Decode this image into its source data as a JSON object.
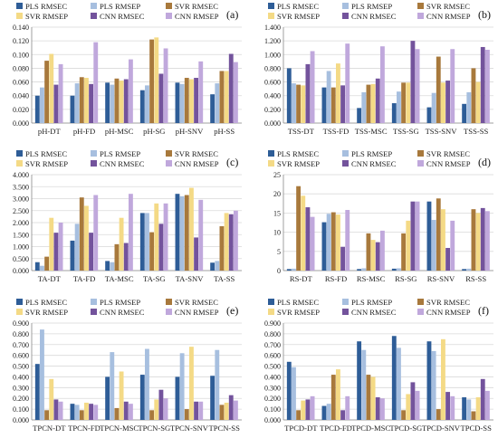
{
  "colors": {
    "PLS RMSEC": "#2e5d97",
    "PLS RMSEP": "#a7bfdf",
    "SVR RMSEC": "#a8793c",
    "SVR RMSEP": "#f4da86",
    "CNN RMSEC": "#73539c",
    "CNN RMSEP": "#c0a8dc"
  },
  "chart_data": [
    {
      "type": "bar",
      "panel_label": "(a)",
      "legend_position": "top",
      "categories": [
        "pH-DT",
        "pH-FD",
        "pH-MSC",
        "pH-SG",
        "pH-SNV",
        "pH-SS"
      ],
      "ylim": [
        0,
        0.14
      ],
      "yticks": [
        "0.000",
        "0.020",
        "0.040",
        "0.060",
        "0.080",
        "0.100",
        "0.120",
        "0.140"
      ],
      "series": [
        {
          "name": "PLS RMSEC",
          "values": [
            0.04,
            0.04,
            0.059,
            0.048,
            0.059,
            0.042
          ]
        },
        {
          "name": "PLS RMSEP",
          "values": [
            0.052,
            0.058,
            0.056,
            0.055,
            0.057,
            0.058
          ]
        },
        {
          "name": "SVR RMSEC",
          "values": [
            0.091,
            0.067,
            0.065,
            0.122,
            0.066,
            0.076
          ]
        },
        {
          "name": "SVR RMSEP",
          "values": [
            0.101,
            0.066,
            0.062,
            0.125,
            0.064,
            0.076
          ]
        },
        {
          "name": "CNN RMSEC",
          "values": [
            0.056,
            0.057,
            0.064,
            0.072,
            0.066,
            0.101
          ]
        },
        {
          "name": "CNN RMSEP",
          "values": [
            0.086,
            0.118,
            0.093,
            0.109,
            0.09,
            0.089
          ]
        }
      ]
    },
    {
      "type": "bar",
      "panel_label": "(b)",
      "legend_position": "top",
      "categories": [
        "TSS-DT",
        "TSS-FD",
        "TSS-MSC",
        "TSS-SG",
        "TSS-SNV",
        "TSS-SS"
      ],
      "ylim": [
        0,
        1.4
      ],
      "yticks": [
        "0.000",
        "0.200",
        "0.400",
        "0.600",
        "0.800",
        "1.000",
        "1.200",
        "1.400"
      ],
      "series": [
        {
          "name": "PLS RMSEC",
          "values": [
            0.8,
            0.52,
            0.22,
            0.29,
            0.23,
            0.28
          ]
        },
        {
          "name": "PLS RMSEP",
          "values": [
            0.58,
            0.76,
            0.45,
            0.46,
            0.44,
            0.45
          ]
        },
        {
          "name": "SVR RMSEC",
          "values": [
            0.56,
            0.52,
            0.56,
            0.59,
            0.97,
            0.8
          ]
        },
        {
          "name": "SVR RMSEP",
          "values": [
            0.55,
            0.87,
            0.57,
            0.59,
            0.59,
            0.6
          ]
        },
        {
          "name": "CNN RMSEC",
          "values": [
            0.86,
            0.55,
            0.65,
            1.2,
            0.62,
            1.11
          ]
        },
        {
          "name": "CNN RMSEP",
          "values": [
            1.05,
            1.16,
            1.12,
            1.08,
            1.08,
            1.07
          ]
        }
      ]
    },
    {
      "type": "bar",
      "panel_label": "(c)",
      "legend_position": "top",
      "categories": [
        "TA-DT",
        "TA-FD",
        "TA-MSC",
        "TA-SG",
        "TA-SNV",
        "TA-SS"
      ],
      "ylim": [
        0,
        4.0
      ],
      "yticks": [
        "0.000",
        "0.500",
        "1.000",
        "1.500",
        "2.000",
        "2.500",
        "3.000",
        "3.500",
        "4.000"
      ],
      "series": [
        {
          "name": "PLS RMSEC",
          "values": [
            0.35,
            1.25,
            0.4,
            2.4,
            3.2,
            0.33
          ]
        },
        {
          "name": "PLS RMSEP",
          "values": [
            0.2,
            1.95,
            0.35,
            2.4,
            3.1,
            0.4
          ]
        },
        {
          "name": "SVR RMSEC",
          "values": [
            0.58,
            3.05,
            1.1,
            1.6,
            3.15,
            1.85
          ]
        },
        {
          "name": "SVR RMSEP",
          "values": [
            2.2,
            2.7,
            2.2,
            2.8,
            3.45,
            2.4
          ]
        },
        {
          "name": "CNN RMSEC",
          "values": [
            1.58,
            1.58,
            1.15,
            1.95,
            1.38,
            2.35
          ]
        },
        {
          "name": "CNN RMSEP",
          "values": [
            2.0,
            3.15,
            3.2,
            2.8,
            2.95,
            2.5
          ]
        }
      ]
    },
    {
      "type": "bar",
      "panel_label": "(d)",
      "legend_position": "top",
      "categories": [
        "RS-DT",
        "RS-FD",
        "RS-MSC",
        "RS-SG",
        "RS-SNV",
        "RS-SS"
      ],
      "ylim": [
        0,
        25
      ],
      "yticks": [
        "0",
        "5",
        "10",
        "15",
        "20",
        "25"
      ],
      "series": [
        {
          "name": "PLS RMSEC",
          "values": [
            0.4,
            12.6,
            0.4,
            0.5,
            18.0,
            0.4
          ]
        },
        {
          "name": "PLS RMSEP",
          "values": [
            0.5,
            14.8,
            0.6,
            0.6,
            13.2,
            0.5
          ]
        },
        {
          "name": "SVR RMSEC",
          "values": [
            22.0,
            15.2,
            9.7,
            9.7,
            18.8,
            16.0
          ]
        },
        {
          "name": "SVR RMSEP",
          "values": [
            19.5,
            14.6,
            8.0,
            13.0,
            16.0,
            15.0
          ]
        },
        {
          "name": "CNN RMSEC",
          "values": [
            16.5,
            6.2,
            7.4,
            18.0,
            5.9,
            16.3
          ]
        },
        {
          "name": "CNN RMSEP",
          "values": [
            14.0,
            15.8,
            10.4,
            18.0,
            13.0,
            15.5
          ]
        }
      ]
    },
    {
      "type": "bar",
      "panel_label": "(e)",
      "legend_position": "top",
      "categories": [
        "TPCN-DT",
        "TPCN-FD",
        "TPCN-MSC",
        "TPCN-SG",
        "TPCN-SNV",
        "TPCN-SS"
      ],
      "ylim": [
        0,
        0.9
      ],
      "yticks": [
        "0.000",
        "0.100",
        "0.200",
        "0.300",
        "0.400",
        "0.500",
        "0.600",
        "0.700",
        "0.800",
        "0.900"
      ],
      "series": [
        {
          "name": "PLS RMSEC",
          "values": [
            0.52,
            0.15,
            0.4,
            0.42,
            0.4,
            0.41
          ]
        },
        {
          "name": "PLS RMSEP",
          "values": [
            0.84,
            0.14,
            0.63,
            0.66,
            0.62,
            0.65
          ]
        },
        {
          "name": "SVR RMSEC",
          "values": [
            0.09,
            0.09,
            0.11,
            0.09,
            0.1,
            0.14
          ]
        },
        {
          "name": "SVR RMSEP",
          "values": [
            0.38,
            0.16,
            0.45,
            0.19,
            0.68,
            0.16
          ]
        },
        {
          "name": "CNN RMSEC",
          "values": [
            0.19,
            0.15,
            0.17,
            0.28,
            0.17,
            0.23
          ]
        },
        {
          "name": "CNN RMSEP",
          "values": [
            0.17,
            0.14,
            0.15,
            0.2,
            0.17,
            0.18
          ]
        }
      ]
    },
    {
      "type": "bar",
      "panel_label": "(f)",
      "legend_position": "top",
      "categories": [
        "TPCD-DT",
        "TPCD-FD",
        "TPCD-MSC",
        "TPCD-SG",
        "TPCD-SNV",
        "TPCD-SS"
      ],
      "ylim": [
        0,
        0.9
      ],
      "yticks": [
        "0.000",
        "0.100",
        "0.200",
        "0.300",
        "0.400",
        "0.500",
        "0.600",
        "0.700",
        "0.800",
        "0.900"
      ],
      "series": [
        {
          "name": "PLS RMSEC",
          "values": [
            0.54,
            0.13,
            0.73,
            0.78,
            0.73,
            0.21
          ]
        },
        {
          "name": "PLS RMSEP",
          "values": [
            0.49,
            0.15,
            0.65,
            0.67,
            0.64,
            0.19
          ]
        },
        {
          "name": "SVR RMSEC",
          "values": [
            0.09,
            0.42,
            0.42,
            0.09,
            0.1,
            0.08
          ]
        },
        {
          "name": "SVR RMSEP",
          "values": [
            0.18,
            0.47,
            0.4,
            0.24,
            0.75,
            0.21
          ]
        },
        {
          "name": "CNN RMSEC",
          "values": [
            0.19,
            0.09,
            0.21,
            0.35,
            0.26,
            0.38
          ]
        },
        {
          "name": "CNN RMSEP",
          "values": [
            0.22,
            0.22,
            0.2,
            0.27,
            0.22,
            0.27
          ]
        }
      ]
    }
  ]
}
